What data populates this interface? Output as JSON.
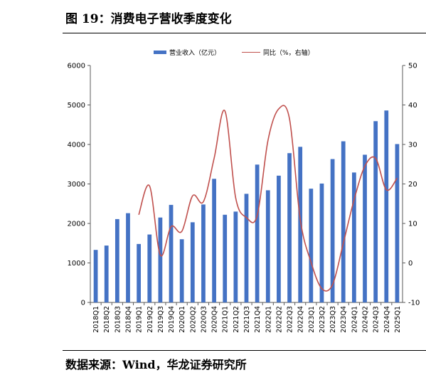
{
  "figure": {
    "title": "图 19：消费电子营收季度变化",
    "source": "数据来源：Wind，华龙证券研究所",
    "edge_top": "",
    "edge_bottom": ""
  },
  "colors": {
    "bar": "#4472c4",
    "line": "#c0504d",
    "axis": "#595959"
  },
  "chart_data": {
    "type": "bar+line",
    "categories": [
      "2018Q1",
      "2018Q2",
      "2018Q3",
      "2018Q4",
      "2019Q1",
      "2019Q2",
      "2019Q3",
      "2019Q4",
      "2020Q1",
      "2020Q2",
      "2020Q3",
      "2020Q4",
      "2021Q1",
      "2021Q2",
      "2021Q3",
      "2021Q4",
      "2022Q1",
      "2022Q2",
      "2022Q3",
      "2022Q4",
      "2023Q1",
      "2023Q2",
      "2023Q3",
      "2023Q4",
      "2024Q1",
      "2024Q2",
      "2024Q3",
      "2024Q4",
      "2025Q1"
    ],
    "series": [
      {
        "name": "营业收入（亿元）",
        "type": "bar",
        "axis": "left",
        "values": [
          1330,
          1440,
          2110,
          2260,
          1480,
          1720,
          2150,
          2470,
          1600,
          2030,
          2480,
          3130,
          2220,
          2300,
          2750,
          3490,
          2840,
          3210,
          3780,
          3940,
          2880,
          3010,
          3630,
          4080,
          3290,
          3740,
          4590,
          4860,
          4010
        ]
      },
      {
        "name": "同比（%，右轴）",
        "type": "line",
        "axis": "right",
        "values": [
          null,
          null,
          null,
          null,
          12.2,
          19.5,
          2.0,
          9.2,
          8.0,
          17.0,
          15.5,
          26.5,
          38.5,
          16.5,
          11.5,
          12.0,
          31.0,
          39.0,
          36.5,
          11.0,
          0.2,
          -6.5,
          -5.5,
          5.0,
          16.0,
          24.5,
          26.5,
          18.5,
          21.5
        ]
      }
    ],
    "ylim_left": [
      0,
      6000
    ],
    "yticks_left": [
      0,
      1000,
      2000,
      3000,
      4000,
      5000,
      6000
    ],
    "ylim_right": [
      -10,
      50
    ],
    "yticks_right": [
      -10,
      0,
      10,
      20,
      30,
      40,
      50
    ],
    "legend_position": "top-center",
    "grid": false
  }
}
